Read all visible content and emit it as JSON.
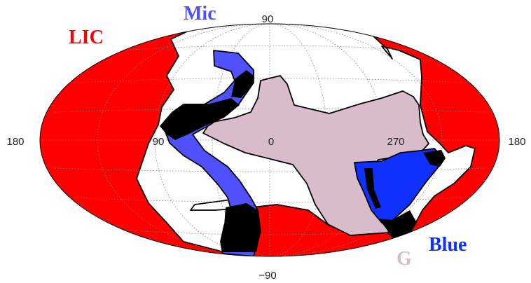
{
  "map": {
    "projection": "Aitoff (galactic coordinates)",
    "grid": true,
    "ticks": {
      "top": "90",
      "bottom": "−90",
      "left": "180",
      "right": "180",
      "lon_90": "90",
      "lon_0": "0",
      "lon_270": "270"
    },
    "clouds": [
      {
        "id": "lic",
        "label": "LIC",
        "color": "#ff0000"
      },
      {
        "id": "mic",
        "label": "Mic",
        "color": "#5050ff"
      },
      {
        "id": "g",
        "label": "G",
        "color": "#d9bccb"
      },
      {
        "id": "blue",
        "label": "Blue",
        "color": "#1030ff"
      }
    ],
    "overlap_color": "#000000"
  }
}
